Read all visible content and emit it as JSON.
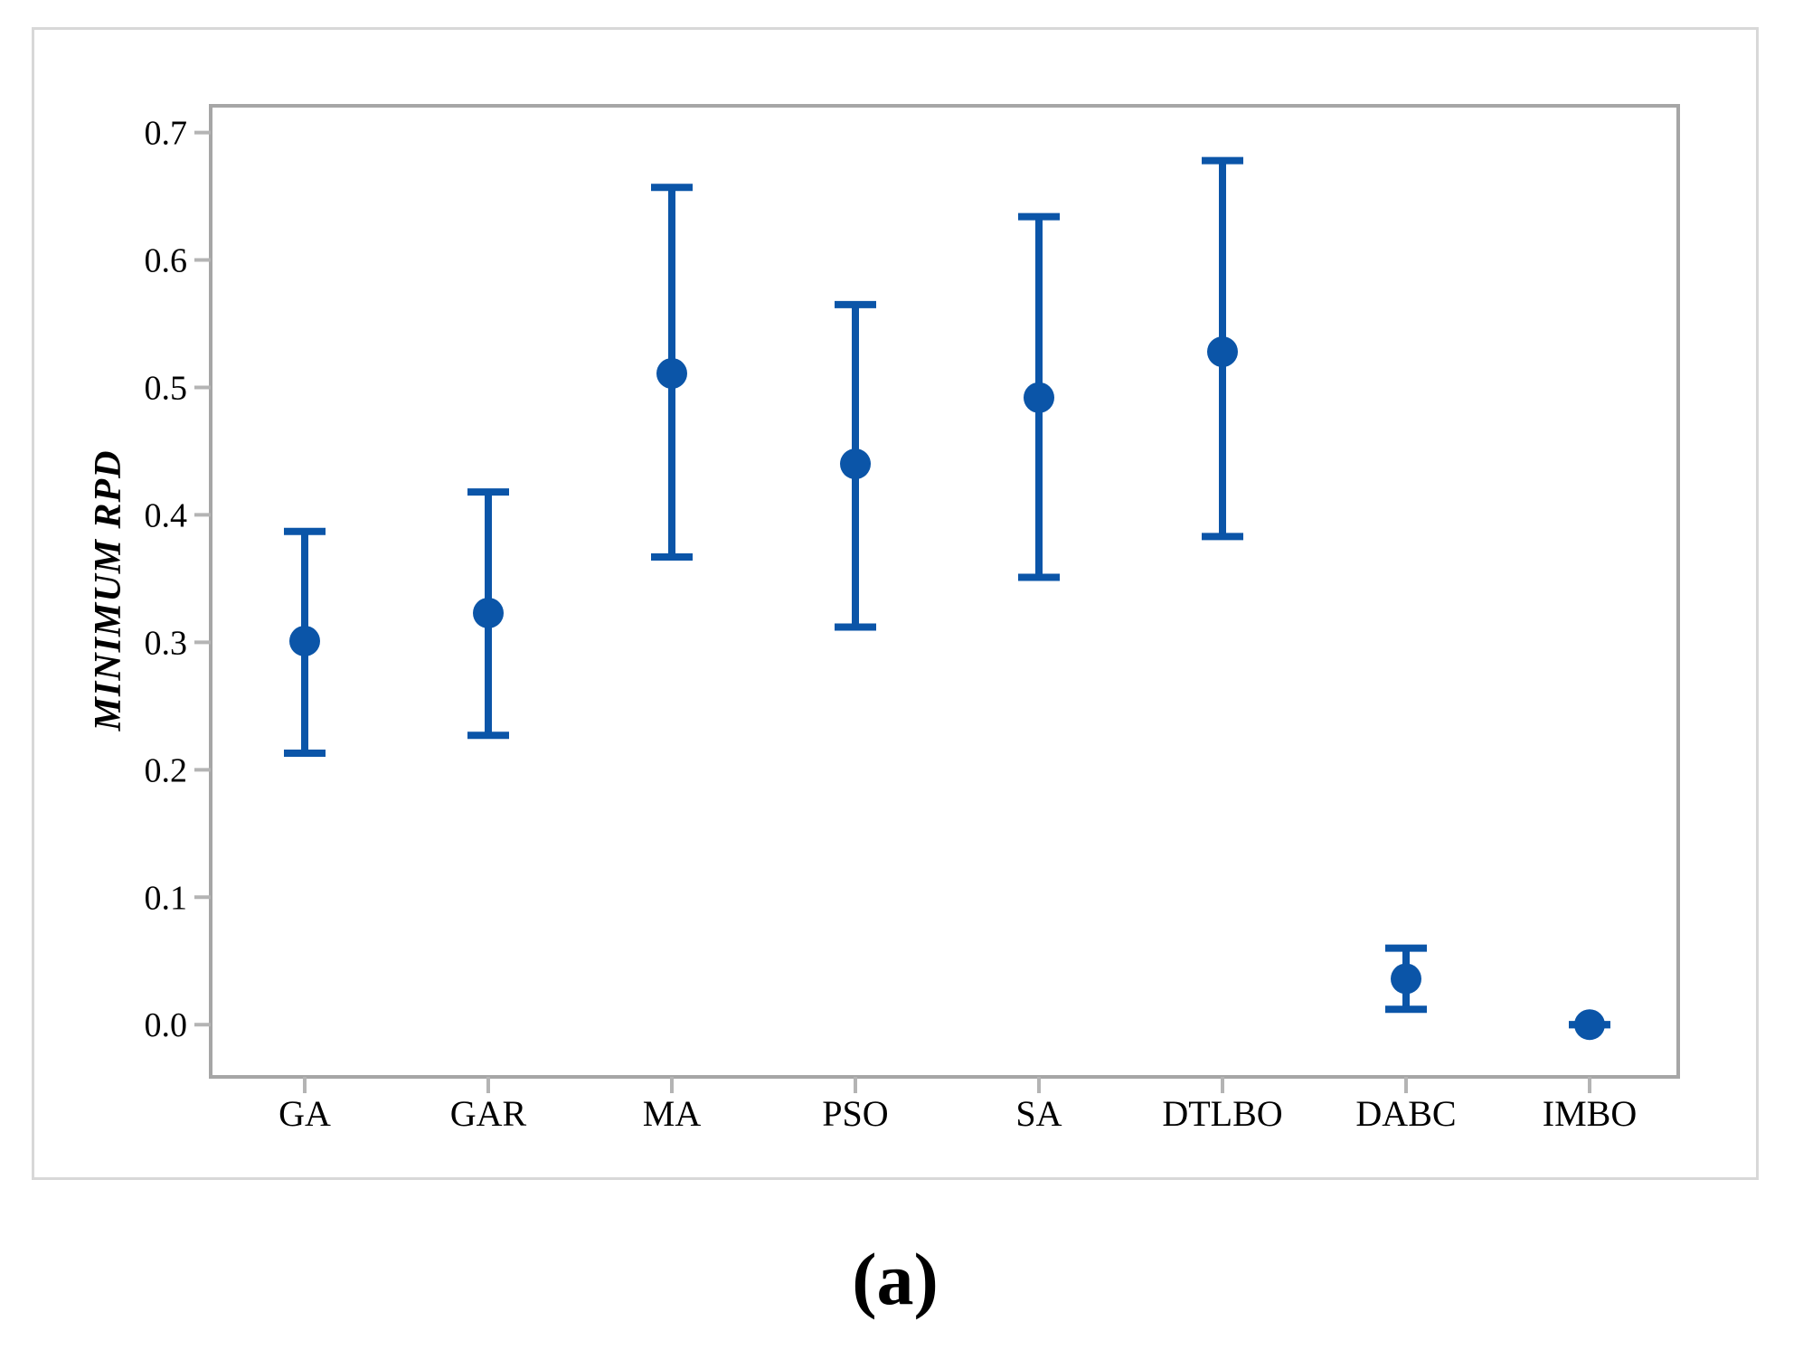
{
  "figure": {
    "caption": "(a)",
    "y_axis_title": "MINIMUM RPD"
  },
  "chart_data": {
    "type": "interval",
    "title": "",
    "xlabel": "",
    "ylabel": "MINIMUM RPD",
    "categories": [
      "GA",
      "GAR",
      "MA",
      "PSO",
      "SA",
      "DTLBO",
      "DABC",
      "IMBO"
    ],
    "series": [
      {
        "name": "MINIMUM RPD",
        "means": [
          0.301,
          0.323,
          0.511,
          0.44,
          0.492,
          0.528,
          0.036,
          0.0
        ],
        "lower": [
          0.213,
          0.227,
          0.367,
          0.312,
          0.351,
          0.383,
          0.012,
          0.0
        ],
        "upper": [
          0.387,
          0.418,
          0.657,
          0.565,
          0.634,
          0.678,
          0.06,
          0.0
        ]
      }
    ],
    "y_tick_labels": [
      "0.0",
      "0.1",
      "0.2",
      "0.3",
      "0.4",
      "0.5",
      "0.6",
      "0.7"
    ],
    "y_tick_values": [
      0.0,
      0.1,
      0.2,
      0.3,
      0.4,
      0.5,
      0.6,
      0.7
    ],
    "ylim": [
      -0.041,
      0.721
    ],
    "grid": false,
    "legend_position": "none",
    "marker_color": "#0B55A8",
    "axis_color": "#A6A6A6",
    "tick_color": "#B4B4B4",
    "frame_color": "#D8D8D8",
    "text_color": "#000000"
  }
}
